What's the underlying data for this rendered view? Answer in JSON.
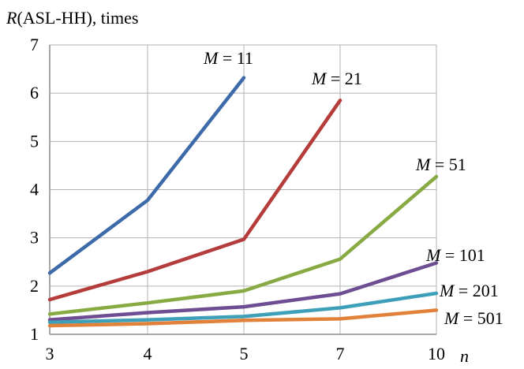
{
  "chart_data": {
    "type": "line",
    "ylabel_var": "R",
    "ylabel_rest": "(ASL-HH),  times",
    "xlabel": "n",
    "x": [
      3,
      4,
      5,
      7,
      10
    ],
    "x_ticks": [
      "3",
      "4",
      "5",
      "7",
      "10"
    ],
    "y_ticks": [
      "1",
      "2",
      "3",
      "4",
      "5",
      "6",
      "7"
    ],
    "ylim": [
      1,
      7
    ],
    "grid": true,
    "series": [
      {
        "name": "M = 11",
        "var": "M",
        "rest": " = 11",
        "color": "#3d6aa8",
        "points": [
          [
            3,
            2.27
          ],
          [
            4,
            3.78
          ],
          [
            5,
            6.32
          ]
        ]
      },
      {
        "name": "M = 21",
        "var": "M",
        "rest": " = 21",
        "color": "#b43c3a",
        "points": [
          [
            3,
            1.72
          ],
          [
            4,
            2.3
          ],
          [
            5,
            2.97
          ],
          [
            7,
            5.85
          ]
        ]
      },
      {
        "name": "M = 51",
        "var": "M",
        "rest": " = 51",
        "color": "#87aa43",
        "points": [
          [
            3,
            1.42
          ],
          [
            4,
            1.65
          ],
          [
            5,
            1.9
          ],
          [
            7,
            2.56
          ],
          [
            10,
            4.27
          ]
        ]
      },
      {
        "name": "M = 101",
        "var": "M",
        "rest": " = 101",
        "color": "#6e4d93",
        "points": [
          [
            3,
            1.3
          ],
          [
            4,
            1.45
          ],
          [
            5,
            1.57
          ],
          [
            7,
            1.84
          ],
          [
            10,
            2.48
          ]
        ]
      },
      {
        "name": "M = 201",
        "var": "M",
        "rest": " = 201",
        "color": "#3ea0b8",
        "points": [
          [
            3,
            1.25
          ],
          [
            4,
            1.3
          ],
          [
            5,
            1.37
          ],
          [
            7,
            1.55
          ],
          [
            10,
            1.85
          ]
        ]
      },
      {
        "name": "M = 501",
        "var": "M",
        "rest": " = 501",
        "color": "#e2813a",
        "points": [
          [
            3,
            1.18
          ],
          [
            4,
            1.22
          ],
          [
            5,
            1.29
          ],
          [
            7,
            1.32
          ],
          [
            10,
            1.5
          ]
        ]
      }
    ]
  }
}
